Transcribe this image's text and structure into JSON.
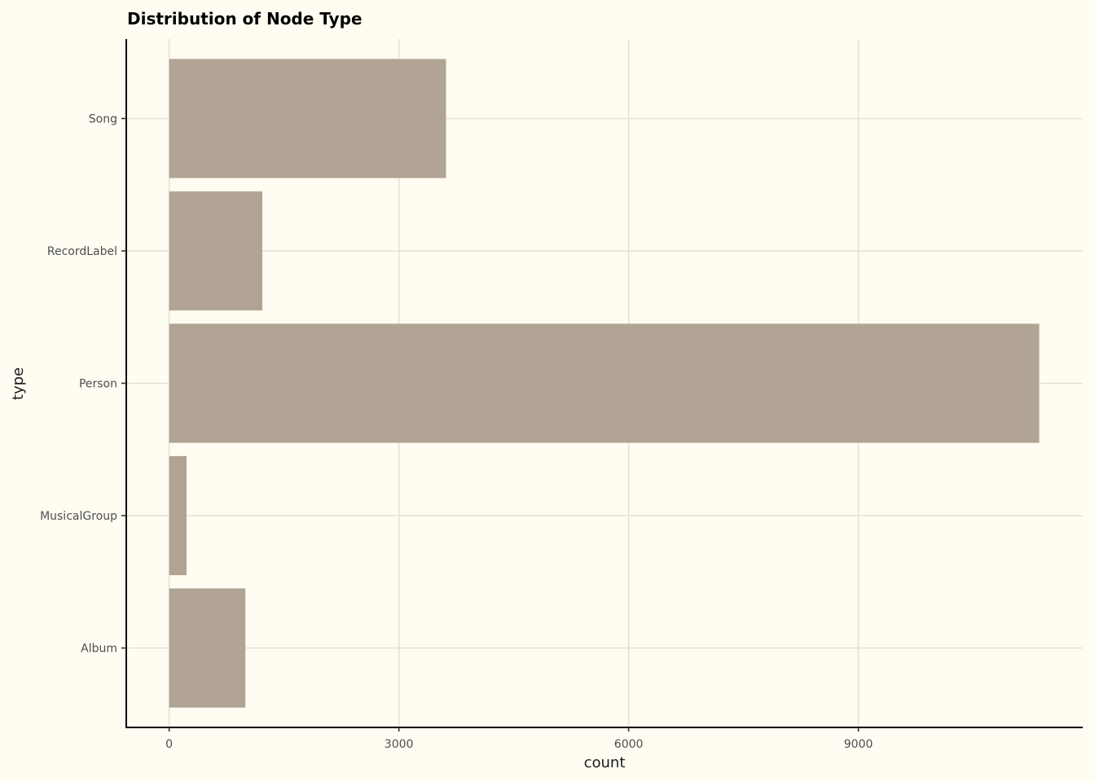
{
  "chart_data": {
    "type": "bar",
    "orientation": "horizontal",
    "title": "Distribution of Node Type",
    "xlabel": "count",
    "ylabel": "type",
    "categories": [
      "Album",
      "MusicalGroup",
      "Person",
      "RecordLabel",
      "Song"
    ],
    "values": [
      995,
      227,
      11361,
      1217,
      3615
    ],
    "xlim": [
      -560,
      11930
    ],
    "xticks": [
      0,
      3000,
      6000,
      9000
    ],
    "xtick_labels": [
      "0",
      "3000",
      "6000",
      "9000"
    ],
    "grid": true,
    "legend": "none",
    "colors": {
      "background": "#fffcf2",
      "bar": "#b2a494",
      "grid": "#e3e2d6",
      "axis": "#000000"
    }
  }
}
